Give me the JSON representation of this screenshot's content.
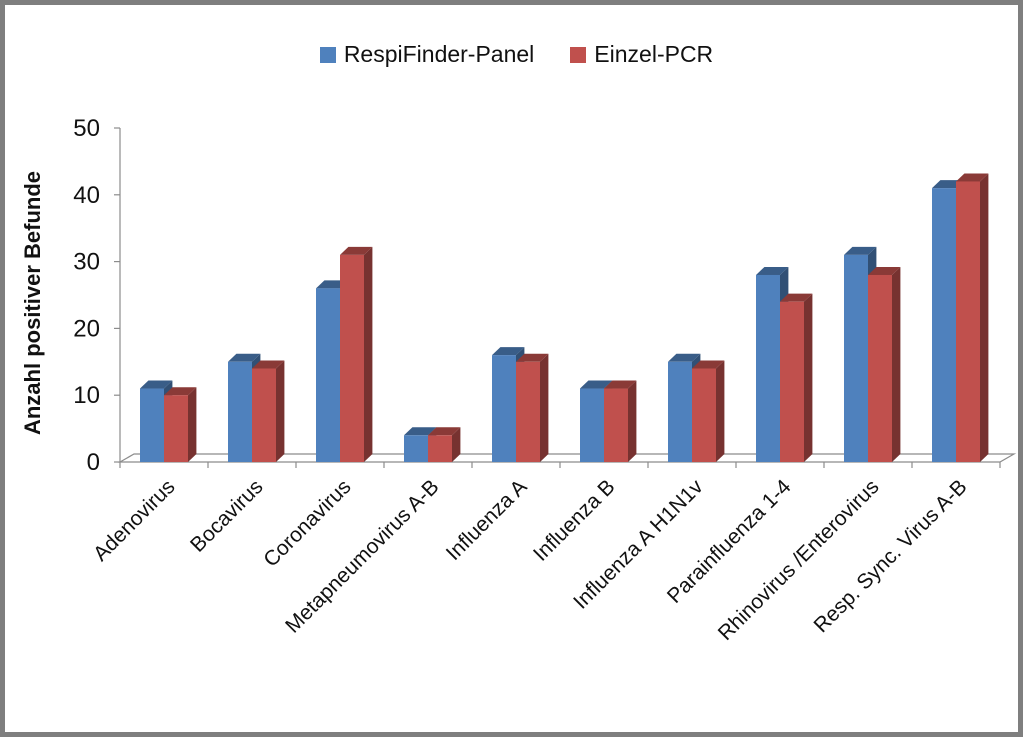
{
  "chart_data": {
    "type": "bar",
    "three_d": true,
    "title": "",
    "xlabel": "",
    "ylabel": "Anzahl positiver Befunde",
    "ylim": [
      0,
      50
    ],
    "yticks": [
      0,
      10,
      20,
      30,
      40,
      50
    ],
    "grid": false,
    "legend_position": "top",
    "categories": [
      "Adenovirus",
      "Bocavirus",
      "Coronavirus",
      "Metapneumovirus  A-B",
      "Influenza A",
      "Influenza B",
      "Influenza A H1N1v",
      "Parainfluenza 1-4",
      "Rhinovirus /Enterovirus",
      "Resp. Sync. Virus A-B"
    ],
    "series": [
      {
        "name": "RespiFinder-Panel",
        "color": "#4F81BD",
        "values": [
          11,
          15,
          26,
          4,
          16,
          11,
          15,
          28,
          31,
          41
        ]
      },
      {
        "name": "Einzel-PCR",
        "color": "#C0504D",
        "values": [
          10,
          14,
          31,
          4,
          15,
          11,
          14,
          24,
          28,
          42
        ]
      }
    ]
  }
}
